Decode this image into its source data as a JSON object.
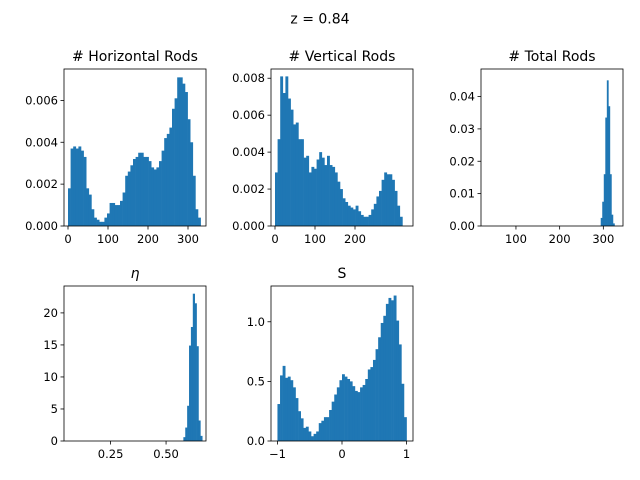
{
  "figure": {
    "suptitle": "z = 0.84"
  },
  "chart_data": [
    {
      "type": "histogram",
      "title": "# Horizontal Rods",
      "color": "#1f77b4",
      "xlim": [
        -10,
        345
      ],
      "ylim": [
        0,
        0.0075
      ],
      "xticks": [
        0,
        100,
        200,
        300
      ],
      "xtick_labels": [
        "0",
        "100",
        "200",
        "300"
      ],
      "yticks": [
        0,
        0.002,
        0.004,
        0.006
      ],
      "ytick_labels": [
        "0.000",
        "0.002",
        "0.004",
        "0.006"
      ],
      "bins": {
        "start": 0,
        "width": 6.5
      },
      "values": [
        0.0018,
        0.0037,
        0.0038,
        0.0037,
        0.0038,
        0.0036,
        0.0033,
        0.0018,
        0.0015,
        0.0008,
        0.0004,
        0.0003,
        0.0002,
        0.0002,
        0.0004,
        0.0006,
        0.0011,
        0.0011,
        0.001,
        0.001,
        0.0012,
        0.0016,
        0.0024,
        0.0026,
        0.0029,
        0.0032,
        0.0033,
        0.0035,
        0.0035,
        0.0033,
        0.0033,
        0.0031,
        0.0028,
        0.0027,
        0.0028,
        0.0031,
        0.0036,
        0.0042,
        0.0044,
        0.0047,
        0.0056,
        0.0061,
        0.0071,
        0.0071,
        0.0068,
        0.0064,
        0.0051,
        0.004,
        0.0024,
        0.0008,
        0.0004
      ]
    },
    {
      "type": "histogram",
      "title": "# Vertical Rods",
      "color": "#1f77b4",
      "xlim": [
        -10,
        345
      ],
      "ylim": [
        0,
        0.0085
      ],
      "xticks": [
        0,
        100,
        200
      ],
      "xtick_labels": [
        "0",
        "100",
        "200"
      ],
      "yticks": [
        0,
        0.002,
        0.004,
        0.006,
        0.008
      ],
      "ytick_labels": [
        "0.000",
        "0.002",
        "0.004",
        "0.006",
        "0.008"
      ],
      "bins": {
        "start": 0,
        "width": 6.5
      },
      "values": [
        0.0029,
        0.0047,
        0.0081,
        0.0072,
        0.0081,
        0.0069,
        0.0063,
        0.0055,
        0.0056,
        0.0047,
        0.0047,
        0.0037,
        0.0038,
        0.0029,
        0.0032,
        0.0031,
        0.0036,
        0.004,
        0.0037,
        0.0033,
        0.0038,
        0.0033,
        0.0032,
        0.0029,
        0.0024,
        0.002,
        0.0015,
        0.0013,
        0.0011,
        0.001,
        0.0009,
        0.0011,
        0.0008,
        0.0006,
        0.0005,
        0.0005,
        0.0006,
        0.0009,
        0.0012,
        0.0016,
        0.0019,
        0.0025,
        0.0029,
        0.0028,
        0.0028,
        0.0025,
        0.0019,
        0.0011,
        0.0005
      ]
    },
    {
      "type": "histogram",
      "title": "# Total Rods",
      "color": "#1f77b4",
      "xlim": [
        20,
        345
      ],
      "ylim": [
        0,
        0.0485
      ],
      "xticks": [
        100,
        200,
        300
      ],
      "xtick_labels": [
        "100",
        "200",
        "300"
      ],
      "yticks": [
        0,
        0.01,
        0.02,
        0.03,
        0.04
      ],
      "ytick_labels": [
        "0.00",
        "0.01",
        "0.02",
        "0.03",
        "0.04"
      ],
      "bins": {
        "start": 294,
        "width": 3.5
      },
      "values": [
        0.0025,
        0.0075,
        0.016,
        0.0335,
        0.045,
        0.037,
        0.016,
        0.0035,
        0.0008
      ]
    },
    {
      "type": "histogram",
      "title": "η",
      "color": "#1f77b4",
      "xlim": [
        0.04,
        0.68
      ],
      "ylim": [
        0,
        24.2
      ],
      "xticks": [
        0.25,
        0.5
      ],
      "xtick_labels": [
        "0.25",
        "0.50"
      ],
      "yticks": [
        0,
        5,
        10,
        15,
        20
      ],
      "ytick_labels": [
        "0",
        "5",
        "10",
        "15",
        "20"
      ],
      "bins": {
        "start": 0.578,
        "width": 0.0085
      },
      "values": [
        0.6,
        2.1,
        5.5,
        14.9,
        17.8,
        23,
        21.5,
        14.8,
        3.2,
        0.8
      ]
    },
    {
      "type": "histogram",
      "title": "S",
      "color": "#1f77b4",
      "xlim": [
        -1.1,
        1.1
      ],
      "ylim": [
        0,
        1.3
      ],
      "xticks": [
        -1,
        0,
        1
      ],
      "xtick_labels": [
        "−1",
        "0",
        "1"
      ],
      "yticks": [
        0,
        0.5,
        1
      ],
      "ytick_labels": [
        "0.0",
        "0.5",
        "1.0"
      ],
      "bins": {
        "start": -1,
        "width": 0.04
      },
      "values": [
        0.31,
        0.55,
        0.63,
        0.53,
        0.54,
        0.51,
        0.45,
        0.36,
        0.25,
        0.19,
        0.11,
        0.12,
        0.08,
        0.04,
        0.06,
        0.08,
        0.15,
        0.17,
        0.2,
        0.2,
        0.26,
        0.33,
        0.39,
        0.45,
        0.51,
        0.56,
        0.54,
        0.52,
        0.5,
        0.46,
        0.42,
        0.41,
        0.45,
        0.47,
        0.52,
        0.6,
        0.62,
        0.68,
        0.77,
        0.87,
        0.99,
        1.05,
        1.15,
        1.2,
        1.18,
        1.22,
        1.01,
        0.81,
        0.48,
        0.2
      ]
    }
  ]
}
